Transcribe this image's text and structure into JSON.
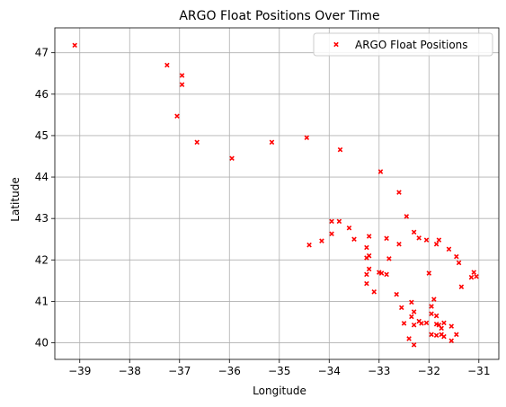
{
  "chart_data": {
    "type": "scatter",
    "title": "ARGO Float Positions Over Time",
    "xlabel": "Longitude",
    "ylabel": "Latitude",
    "xlim": [
      -39.5,
      -30.6
    ],
    "ylim": [
      39.6,
      47.6
    ],
    "xticks": [
      -39,
      -38,
      -37,
      -36,
      -35,
      -34,
      -33,
      -32,
      -31
    ],
    "yticks": [
      40,
      41,
      42,
      43,
      44,
      45,
      46,
      47
    ],
    "grid": true,
    "legend_position": "upper-right",
    "marker": "x",
    "color": "#ff0000",
    "series": [
      {
        "name": "ARGO Float Positions",
        "x": [
          -39.1,
          -37.25,
          -36.95,
          -36.95,
          -37.05,
          -36.65,
          -35.95,
          -35.15,
          -34.45,
          -33.78,
          -32.97,
          -32.6,
          -32.45,
          -33.95,
          -34.15,
          -34.4,
          -33.8,
          -33.95,
          -33.6,
          -33.5,
          -33.2,
          -33.25,
          -33.25,
          -33.2,
          -33.25,
          -33.25,
          -33.2,
          -33.1,
          -32.85,
          -32.8,
          -32.65,
          -32.6,
          -32.3,
          -32.2,
          -32.05,
          -31.85,
          -31.8,
          -31.6,
          -31.45,
          -31.35,
          -31.15,
          -31.1,
          -31.05,
          -31.4,
          -32.0,
          -32.95,
          -33.0,
          -32.85,
          -32.55,
          -32.5,
          -32.35,
          -32.35,
          -32.3,
          -32.3,
          -32.2,
          -32.15,
          -32.05,
          -31.95,
          -31.95,
          -31.85,
          -31.9,
          -31.85,
          -31.8,
          -31.75,
          -31.7,
          -31.95,
          -31.85,
          -31.75,
          -31.7,
          -31.55,
          -31.45,
          -31.55,
          -32.4,
          -32.3
        ],
        "y": [
          47.18,
          46.7,
          46.45,
          46.23,
          45.47,
          44.84,
          44.45,
          44.84,
          44.95,
          44.66,
          44.13,
          43.63,
          43.05,
          42.93,
          42.46,
          42.36,
          42.93,
          42.63,
          42.77,
          42.5,
          42.57,
          42.3,
          42.05,
          42.1,
          41.43,
          41.65,
          41.78,
          41.23,
          42.52,
          42.03,
          41.17,
          42.38,
          42.67,
          42.53,
          42.48,
          42.38,
          42.48,
          42.26,
          42.08,
          41.35,
          41.58,
          41.7,
          41.6,
          41.93,
          41.68,
          41.68,
          41.7,
          41.65,
          40.85,
          40.47,
          40.98,
          40.63,
          40.75,
          40.43,
          40.52,
          40.47,
          40.48,
          40.88,
          40.7,
          40.65,
          41.05,
          40.45,
          40.43,
          40.2,
          40.48,
          40.2,
          40.18,
          40.35,
          40.15,
          40.4,
          40.2,
          40.05,
          40.1,
          39.95
        ]
      }
    ]
  }
}
